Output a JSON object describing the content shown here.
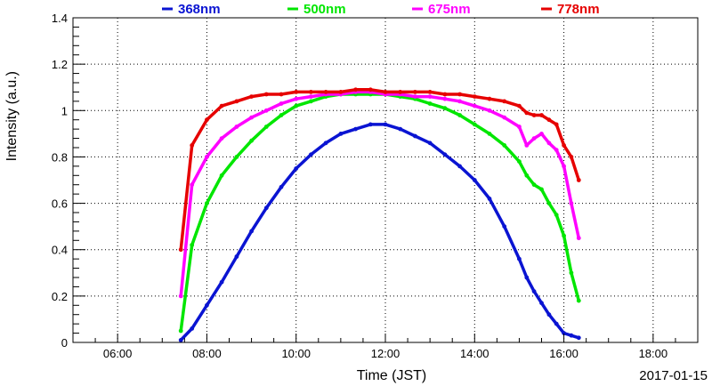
{
  "chart_data": {
    "type": "scatter",
    "title": "",
    "xlabel": "Time (JST)",
    "ylabel": "Intensity (a.u.)",
    "date_label": "2017-01-15",
    "xlim": [
      "05:00",
      "19:00"
    ],
    "ylim": [
      0,
      1.4
    ],
    "x_ticks": [
      "06:00",
      "08:00",
      "10:00",
      "12:00",
      "14:00",
      "16:00",
      "18:00"
    ],
    "y_ticks": [
      "0",
      "0.2",
      "0.4",
      "0.6",
      "0.8",
      "1",
      "1.2",
      "1.4"
    ],
    "grid": true,
    "legend_position": "top",
    "series": [
      {
        "name": "368nm",
        "color": "#0a14d2",
        "x": [
          "07:25",
          "07:40",
          "08:00",
          "08:20",
          "08:40",
          "09:00",
          "09:20",
          "09:40",
          "10:00",
          "10:20",
          "10:40",
          "11:00",
          "11:20",
          "11:40",
          "12:00",
          "12:20",
          "12:40",
          "13:00",
          "13:20",
          "13:40",
          "14:00",
          "14:20",
          "14:40",
          "15:00",
          "15:10",
          "15:20",
          "15:30",
          "15:40",
          "15:50",
          "16:00",
          "16:10",
          "16:20"
        ],
        "y": [
          0.01,
          0.06,
          0.16,
          0.26,
          0.37,
          0.48,
          0.58,
          0.67,
          0.75,
          0.81,
          0.86,
          0.9,
          0.92,
          0.94,
          0.94,
          0.92,
          0.89,
          0.86,
          0.81,
          0.76,
          0.7,
          0.62,
          0.5,
          0.36,
          0.28,
          0.22,
          0.17,
          0.12,
          0.08,
          0.04,
          0.03,
          0.02
        ]
      },
      {
        "name": "500nm",
        "color": "#00e600",
        "x": [
          "07:25",
          "07:40",
          "08:00",
          "08:20",
          "08:40",
          "09:00",
          "09:20",
          "09:40",
          "10:00",
          "10:20",
          "10:40",
          "11:00",
          "11:20",
          "11:40",
          "12:00",
          "12:20",
          "12:40",
          "13:00",
          "13:20",
          "13:40",
          "14:00",
          "14:20",
          "14:40",
          "15:00",
          "15:10",
          "15:20",
          "15:30",
          "15:40",
          "15:50",
          "16:00",
          "16:10",
          "16:20"
        ],
        "y": [
          0.05,
          0.42,
          0.6,
          0.72,
          0.8,
          0.87,
          0.93,
          0.98,
          1.02,
          1.04,
          1.06,
          1.07,
          1.07,
          1.07,
          1.07,
          1.06,
          1.05,
          1.03,
          1.01,
          0.98,
          0.94,
          0.9,
          0.85,
          0.78,
          0.72,
          0.68,
          0.66,
          0.6,
          0.55,
          0.46,
          0.3,
          0.18
        ]
      },
      {
        "name": "675nm",
        "color": "#ff00ff",
        "x": [
          "07:25",
          "07:40",
          "08:00",
          "08:20",
          "08:40",
          "09:00",
          "09:20",
          "09:40",
          "10:00",
          "10:20",
          "10:40",
          "11:00",
          "11:20",
          "11:40",
          "12:00",
          "12:20",
          "12:40",
          "13:00",
          "13:20",
          "13:40",
          "14:00",
          "14:20",
          "14:40",
          "15:00",
          "15:10",
          "15:20",
          "15:30",
          "15:40",
          "15:50",
          "16:00",
          "16:10",
          "16:20"
        ],
        "y": [
          0.2,
          0.68,
          0.8,
          0.88,
          0.93,
          0.97,
          1.0,
          1.03,
          1.05,
          1.06,
          1.07,
          1.07,
          1.08,
          1.08,
          1.07,
          1.07,
          1.06,
          1.06,
          1.05,
          1.04,
          1.02,
          1.0,
          0.97,
          0.93,
          0.85,
          0.88,
          0.9,
          0.86,
          0.83,
          0.76,
          0.6,
          0.45
        ]
      },
      {
        "name": "778nm",
        "color": "#e60000",
        "x": [
          "07:25",
          "07:40",
          "08:00",
          "08:20",
          "08:40",
          "09:00",
          "09:20",
          "09:40",
          "10:00",
          "10:20",
          "10:40",
          "11:00",
          "11:20",
          "11:40",
          "12:00",
          "12:20",
          "12:40",
          "13:00",
          "13:20",
          "13:40",
          "14:00",
          "14:20",
          "14:40",
          "15:00",
          "15:10",
          "15:20",
          "15:30",
          "15:40",
          "15:50",
          "16:00",
          "16:10",
          "16:20"
        ],
        "y": [
          0.4,
          0.85,
          0.96,
          1.02,
          1.04,
          1.06,
          1.07,
          1.07,
          1.08,
          1.08,
          1.08,
          1.08,
          1.09,
          1.09,
          1.08,
          1.08,
          1.08,
          1.08,
          1.07,
          1.07,
          1.06,
          1.05,
          1.04,
          1.02,
          0.99,
          0.98,
          0.98,
          0.96,
          0.94,
          0.85,
          0.8,
          0.7
        ]
      }
    ]
  }
}
